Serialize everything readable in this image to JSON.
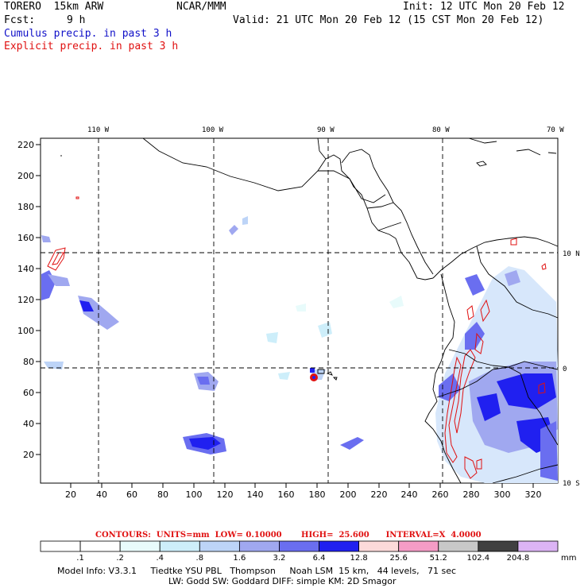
{
  "header": {
    "model": "TORERO  15km ARW",
    "center": "NCAR/MMM",
    "init": "Init: 12 UTC Mon 20 Feb 12",
    "fcst_label": "Fcst:",
    "fcst_value": "9 h",
    "valid": "Valid: 21 UTC Mon 20 Feb 12 (15 CST Mon 20 Feb 12)",
    "field_cumulus": "Cumulus precip. in past 3 h",
    "field_explicit": "Explicit precip. in past 3 h"
  },
  "axes": {
    "top_lon_labels": [
      "110 W",
      "100 W",
      "90 W",
      "80 W",
      "70 W"
    ],
    "right_lat_labels": [
      "10 N",
      "0",
      "10 S"
    ],
    "left_y_ticks": [
      "220",
      "200",
      "180",
      "160",
      "140",
      "120",
      "100",
      "80",
      "60",
      "40",
      "20"
    ],
    "bottom_x_ticks": [
      "20",
      "40",
      "60",
      "80",
      "100",
      "120",
      "140",
      "160",
      "180",
      "200",
      "220",
      "240",
      "260",
      "280",
      "300",
      "320"
    ]
  },
  "contours_text": "CONTOURS:  UNITS=mm  LOW= 0.10000       HIGH=  25.600      INTERVAL=X  4.0000",
  "legend": {
    "units": "mm",
    "boundaries": [
      ".1",
      ".2",
      ".4",
      ".8",
      "1.6",
      "3.2",
      "6.4",
      "12.8",
      "25.6",
      "51.2",
      "102.4",
      "204.8"
    ],
    "colors": [
      "#ffffff",
      "#ffffff",
      "#e8fbfb",
      "#cdeefa",
      "#bdd4f7",
      "#a0a8f0",
      "#6a6ef0",
      "#2020f0",
      "#fcdada",
      "#f59cc6",
      "#c8c8c8",
      "#404040",
      "#dcb4f5"
    ]
  },
  "footer": {
    "line1": "Model Info: V3.3.1     Tiedtke YSU PBL   Thompson     Noah LSM  15 km,   44 levels,   71 sec",
    "line2": "LW: Godd SW: Goddard DIFF: simple KM: 2D Smagor"
  },
  "colors": {
    "cumulus_blue": "#1010c8",
    "explicit_red": "#e01010"
  }
}
